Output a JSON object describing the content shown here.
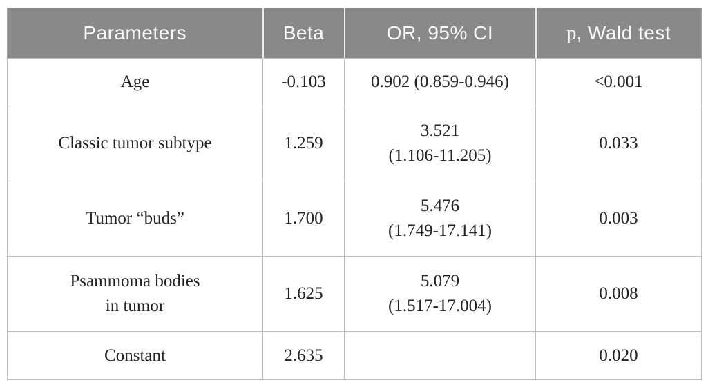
{
  "table": {
    "colors": {
      "header_bg": "#898989",
      "header_text": "#fafafa",
      "body_text": "#232323",
      "grid_line": "#bdbdbd",
      "outer_border": "#a3a3a3"
    },
    "columns": [
      {
        "label": "Parameters"
      },
      {
        "label": "Beta"
      },
      {
        "label": "OR, 95% CI"
      },
      {
        "prefix": "p",
        "label": ", Wald test"
      }
    ],
    "rows": [
      {
        "parameter": "Age",
        "parameter2": "",
        "beta": "-0.103",
        "or_main": "0.902 (0.859-0.946)",
        "or_ci": "",
        "p": "<0.001"
      },
      {
        "parameter": "Classic tumor subtype",
        "parameter2": "",
        "beta": "1.259",
        "or_main": "3.521",
        "or_ci": "(1.106-11.205)",
        "p": "0.033"
      },
      {
        "parameter": "Tumor “buds”",
        "parameter2": "",
        "beta": "1.700",
        "or_main": "5.476",
        "or_ci": "(1.749-17.141)",
        "p": "0.003"
      },
      {
        "parameter": "Psammoma bodies",
        "parameter2": "in tumor",
        "beta": "1.625",
        "or_main": "5.079",
        "or_ci": "(1.517-17.004)",
        "p": "0.008"
      },
      {
        "parameter": "Constant",
        "parameter2": "",
        "beta": "2.635",
        "or_main": "",
        "or_ci": "",
        "p": "0.020"
      }
    ]
  }
}
